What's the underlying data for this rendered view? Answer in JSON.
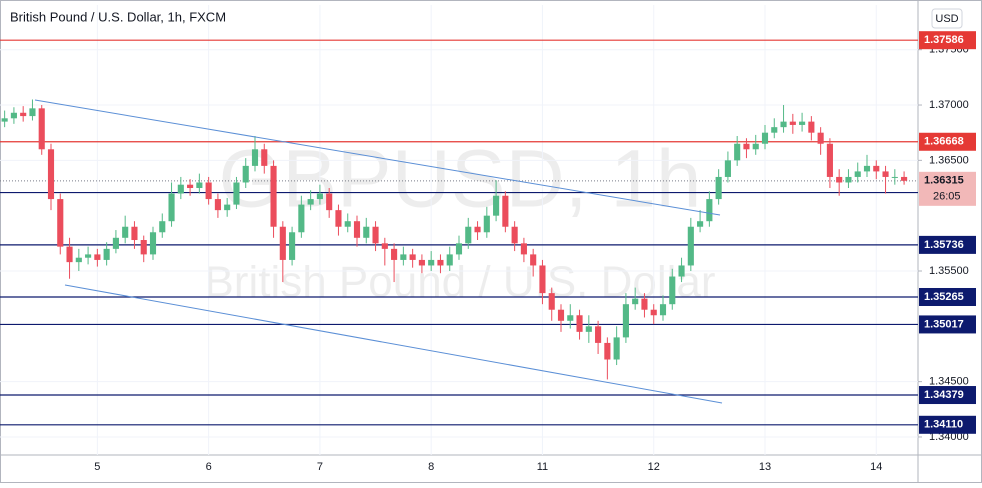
{
  "chart_data": {
    "type": "candlestick",
    "title": "British Pound / U.S. Dollar, 1h, FXCM",
    "currency": "USD",
    "watermark": {
      "symbol": "GBPUSD, 1h",
      "description": "British Pound / U.S. Dollar"
    },
    "up_color": "#53b987",
    "down_color": "#eb4d5c",
    "ylim": [
      1.33837,
      1.37904
    ],
    "yticks": [
      {
        "value": 1.34,
        "label": "1.34000"
      },
      {
        "value": 1.345,
        "label": "1.34500"
      },
      {
        "value": 1.355,
        "label": "1.35500"
      },
      {
        "value": 1.365,
        "label": "1.36500"
      },
      {
        "value": 1.37,
        "label": "1.37000"
      },
      {
        "value": 1.375,
        "label": "1.37500"
      }
    ],
    "levels": [
      {
        "value": 1.37586,
        "color": "#e53935"
      },
      {
        "value": 1.36668,
        "color": "#e53935"
      },
      {
        "value": 1.36209,
        "color": "#0d1a6e"
      },
      {
        "value": 1.35736,
        "color": "#0d1a6e"
      },
      {
        "value": 1.35265,
        "color": "#0d1a6e"
      },
      {
        "value": 1.35017,
        "color": "#0d1a6e"
      },
      {
        "value": 1.34379,
        "color": "#0d1a6e"
      },
      {
        "value": 1.3411,
        "label": "1.34110",
        "color": "#0d1a6e"
      }
    ],
    "last_price": {
      "value": 1.36315,
      "countdown": "26:05",
      "color": "#f2b8b8"
    },
    "categories": [
      null,
      null,
      null,
      null,
      null,
      null,
      null,
      null,
      null,
      null,
      "5",
      null,
      null,
      null,
      null,
      null,
      null,
      null,
      null,
      null,
      null,
      null,
      "6",
      null,
      null,
      null,
      null,
      null,
      null,
      null,
      null,
      null,
      null,
      null,
      "7",
      null,
      null,
      null,
      null,
      null,
      null,
      null,
      null,
      null,
      null,
      null,
      "8",
      null,
      null,
      null,
      null,
      null,
      null,
      null,
      null,
      null,
      null,
      null,
      "11",
      null,
      null,
      null,
      null,
      null,
      null,
      null,
      null,
      null,
      null,
      null,
      "12",
      null,
      null,
      null,
      null,
      null,
      null,
      null,
      null,
      null,
      null,
      null,
      "13",
      null,
      null,
      null,
      null,
      null,
      null,
      null,
      null,
      null,
      null,
      null,
      "14",
      null,
      null,
      null
    ],
    "open": [
      1.3685,
      1.3688,
      1.3693,
      1.369,
      1.3697,
      1.366,
      1.3615,
      1.3572,
      1.3558,
      1.3562,
      1.3565,
      1.356,
      1.357,
      1.358,
      1.359,
      1.3578,
      1.3565,
      1.3585,
      1.3595,
      1.362,
      1.3628,
      1.3625,
      1.363,
      1.3615,
      1.3605,
      1.361,
      1.363,
      1.3645,
      1.366,
      1.3645,
      1.359,
      1.356,
      1.3585,
      1.361,
      1.3615,
      1.362,
      1.3605,
      1.359,
      1.3595,
      1.358,
      1.359,
      1.3575,
      1.357,
      1.356,
      1.3565,
      1.356,
      1.3555,
      1.356,
      1.3555,
      1.3565,
      1.3575,
      1.359,
      1.3585,
      1.36,
      1.3618,
      1.359,
      1.3575,
      1.3565,
      1.3555,
      1.353,
      1.3515,
      1.3505,
      1.351,
      1.3495,
      1.35,
      1.3485,
      1.347,
      1.349,
      1.352,
      1.3525,
      1.3515,
      1.351,
      1.352,
      1.3545,
      1.3555,
      1.359,
      1.3595,
      1.3615,
      1.3635,
      1.365,
      1.3665,
      1.366,
      1.3665,
      1.3675,
      1.368,
      1.3685,
      1.3682,
      1.3685,
      1.3675,
      1.3665,
      1.3635,
      1.363,
      1.3635,
      1.364,
      1.3645,
      1.364,
      1.3635,
      1.3635
    ],
    "high": [
      1.3695,
      1.3698,
      1.3699,
      1.3705,
      1.37,
      1.3665,
      1.362,
      1.358,
      1.357,
      1.3572,
      1.357,
      1.3576,
      1.3587,
      1.36,
      1.3595,
      1.3582,
      1.359,
      1.3602,
      1.363,
      1.3635,
      1.3633,
      1.3638,
      1.3635,
      1.362,
      1.3616,
      1.3635,
      1.3652,
      1.3672,
      1.3665,
      1.365,
      1.3595,
      1.359,
      1.3618,
      1.3623,
      1.3628,
      1.3625,
      1.361,
      1.3602,
      1.36,
      1.3598,
      1.3595,
      1.358,
      1.3575,
      1.3572,
      1.357,
      1.3565,
      1.3568,
      1.3565,
      1.3572,
      1.3582,
      1.3598,
      1.3595,
      1.3608,
      1.3632,
      1.3622,
      1.3595,
      1.358,
      1.357,
      1.356,
      1.3535,
      1.352,
      1.352,
      1.3515,
      1.351,
      1.3505,
      1.349,
      1.35,
      1.353,
      1.3535,
      1.353,
      1.352,
      1.3528,
      1.3552,
      1.3562,
      1.3598,
      1.3605,
      1.3622,
      1.3642,
      1.3658,
      1.3672,
      1.367,
      1.3673,
      1.3682,
      1.3688,
      1.37,
      1.3692,
      1.3693,
      1.369,
      1.368,
      1.367,
      1.3642,
      1.3642,
      1.3648,
      1.3655,
      1.365,
      1.3645,
      1.3642,
      1.364
    ],
    "low": [
      1.368,
      1.3683,
      1.3685,
      1.3686,
      1.3655,
      1.3605,
      1.3565,
      1.3543,
      1.355,
      1.3556,
      1.3554,
      1.3555,
      1.3566,
      1.3575,
      1.357,
      1.3558,
      1.356,
      1.358,
      1.359,
      1.3615,
      1.3618,
      1.362,
      1.361,
      1.3598,
      1.3599,
      1.3606,
      1.3625,
      1.364,
      1.3638,
      1.358,
      1.354,
      1.3555,
      1.358,
      1.3605,
      1.361,
      1.3598,
      1.3582,
      1.3585,
      1.3572,
      1.3575,
      1.3568,
      1.3555,
      1.354,
      1.3555,
      1.3553,
      1.3548,
      1.355,
      1.3548,
      1.355,
      1.356,
      1.357,
      1.3578,
      1.358,
      1.3595,
      1.3585,
      1.3568,
      1.3558,
      1.3545,
      1.352,
      1.3505,
      1.3495,
      1.3498,
      1.3488,
      1.3485,
      1.3475,
      1.3452,
      1.3465,
      1.3485,
      1.3515,
      1.3508,
      1.3502,
      1.3505,
      1.3515,
      1.354,
      1.355,
      1.3585,
      1.359,
      1.361,
      1.363,
      1.3645,
      1.3652,
      1.3655,
      1.366,
      1.367,
      1.3675,
      1.3674,
      1.3676,
      1.3668,
      1.3655,
      1.3625,
      1.3618,
      1.3625,
      1.363,
      1.3635,
      1.3633,
      1.362,
      1.3628,
      1.3628
    ],
    "close": [
      1.3688,
      1.3693,
      1.369,
      1.3697,
      1.366,
      1.3615,
      1.3572,
      1.3558,
      1.3562,
      1.3565,
      1.356,
      1.357,
      1.358,
      1.359,
      1.3578,
      1.3565,
      1.3585,
      1.3595,
      1.362,
      1.3628,
      1.3625,
      1.363,
      1.3615,
      1.3605,
      1.361,
      1.363,
      1.3645,
      1.366,
      1.3645,
      1.359,
      1.356,
      1.3585,
      1.361,
      1.3615,
      1.362,
      1.3605,
      1.359,
      1.3595,
      1.358,
      1.359,
      1.3575,
      1.357,
      1.356,
      1.3565,
      1.356,
      1.3555,
      1.356,
      1.3555,
      1.3565,
      1.3575,
      1.359,
      1.3585,
      1.36,
      1.3618,
      1.359,
      1.3575,
      1.3565,
      1.3555,
      1.353,
      1.3515,
      1.3505,
      1.351,
      1.3495,
      1.35,
      1.3485,
      1.347,
      1.349,
      1.352,
      1.3525,
      1.3515,
      1.351,
      1.352,
      1.3545,
      1.3555,
      1.359,
      1.3595,
      1.3615,
      1.3635,
      1.365,
      1.3665,
      1.366,
      1.3665,
      1.3675,
      1.368,
      1.3685,
      1.3682,
      1.3685,
      1.3675,
      1.3665,
      1.3635,
      1.363,
      1.3635,
      1.364,
      1.3645,
      1.364,
      1.3635,
      1.3635,
      1.36315
    ]
  }
}
